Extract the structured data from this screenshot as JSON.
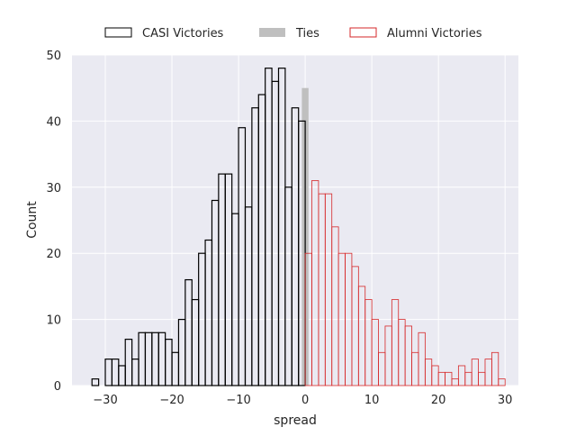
{
  "chart_data": {
    "type": "histogram",
    "xlabel": "spread",
    "ylabel": "Count",
    "xlim": [
      -35,
      32
    ],
    "ylim": [
      0,
      50
    ],
    "grid": true,
    "legend_position": "top-center",
    "bin_width": 1,
    "x_ticks": [
      "−30",
      "−20",
      "−10",
      "0",
      "10",
      "20",
      "30"
    ],
    "x_tick_values": [
      -30,
      -20,
      -10,
      0,
      10,
      20,
      30
    ],
    "y_ticks": [
      "0",
      "10",
      "20",
      "30",
      "40",
      "50"
    ],
    "y_tick_values": [
      0,
      10,
      20,
      30,
      40,
      50
    ],
    "colors": {
      "plot_bg": "#EAEAF2",
      "grid": "#FFFFFF",
      "casi_edge": "#000000",
      "ties_fill": "#BFBFBF",
      "alumni_edge": "#D62728"
    },
    "series": [
      {
        "name": "CASI Victories",
        "style": "step-outline",
        "bin_starts": [
          -32,
          -31,
          -30,
          -29,
          -28,
          -27,
          -26,
          -25,
          -24,
          -23,
          -22,
          -21,
          -20,
          -19,
          -18,
          -17,
          -16,
          -15,
          -14,
          -13,
          -12,
          -11,
          -10,
          -9,
          -8,
          -7,
          -6,
          -5,
          -4,
          -3,
          -2,
          -1
        ],
        "values": [
          1,
          0,
          4,
          4,
          3,
          7,
          4,
          8,
          8,
          8,
          8,
          7,
          5,
          10,
          16,
          13,
          20,
          22,
          28,
          32,
          32,
          26,
          39,
          27,
          42,
          44,
          48,
          46,
          48,
          30,
          42,
          40
        ]
      },
      {
        "name": "Ties",
        "style": "filled",
        "bin_starts": [
          -0.5
        ],
        "values": [
          45
        ]
      },
      {
        "name": "Alumni Victories",
        "style": "step-outline",
        "bin_starts": [
          0,
          1,
          2,
          3,
          4,
          5,
          6,
          7,
          8,
          9,
          10,
          11,
          12,
          13,
          14,
          15,
          16,
          17,
          18,
          19,
          20,
          21,
          22,
          23,
          24,
          25,
          26,
          27,
          28,
          29
        ],
        "values": [
          20,
          31,
          29,
          29,
          24,
          20,
          20,
          18,
          15,
          13,
          10,
          5,
          9,
          13,
          10,
          9,
          5,
          8,
          4,
          3,
          2,
          2,
          1,
          3,
          2,
          4,
          2,
          4,
          5,
          1
        ]
      }
    ]
  }
}
